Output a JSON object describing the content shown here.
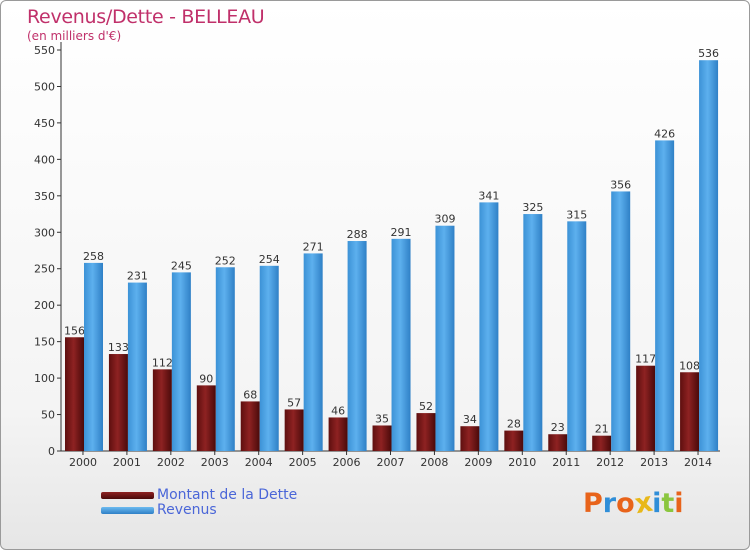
{
  "chart_data": {
    "type": "bar",
    "title": "Revenus/Dette - BELLEAU",
    "subtitle": "(en milliers d'€)",
    "categories": [
      "2000",
      "2001",
      "2002",
      "2003",
      "2004",
      "2005",
      "2006",
      "2007",
      "2008",
      "2009",
      "2010",
      "2011",
      "2012",
      "2013",
      "2014"
    ],
    "series": [
      {
        "name": "Montant de la Dette",
        "color": "#7a1515",
        "values": [
          156,
          133,
          112,
          90,
          68,
          57,
          46,
          35,
          52,
          34,
          28,
          23,
          21,
          117,
          108
        ]
      },
      {
        "name": "Revenus",
        "color": "#4aa3e6",
        "values": [
          258,
          231,
          245,
          252,
          254,
          271,
          288,
          291,
          309,
          341,
          325,
          315,
          356,
          426,
          536
        ]
      }
    ],
    "yticks": [
      0,
      50,
      100,
      150,
      200,
      250,
      300,
      350,
      400,
      450,
      500,
      550
    ],
    "ylim": [
      0,
      550
    ],
    "grid": false,
    "legend": "bottom-left"
  },
  "logo": {
    "text": "Proxiti",
    "letters": [
      "P",
      "r",
      "o",
      "x",
      "i",
      "t",
      "i"
    ],
    "colors": [
      "#e8631a",
      "#2f8ed8",
      "#e8631a",
      "#e8b81a",
      "#2f8ed8",
      "#8bc63f",
      "#e8631a"
    ]
  }
}
